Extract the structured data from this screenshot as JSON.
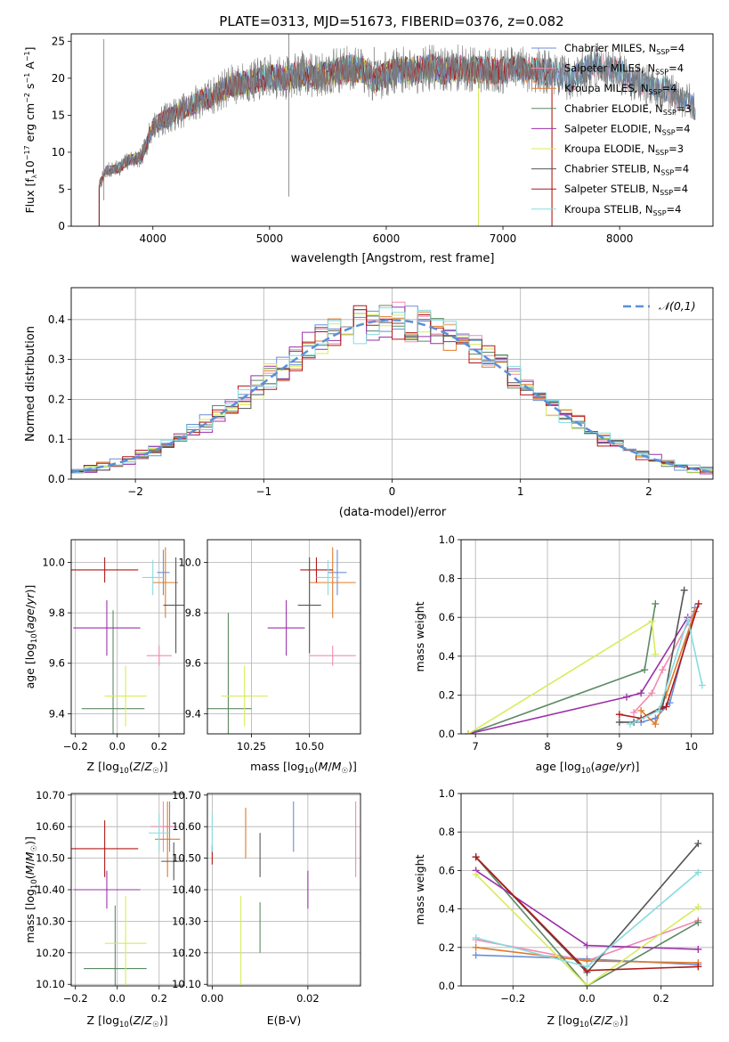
{
  "title": "PLATE=0313, MJD=51673, FIBERID=0376, z=0.082",
  "colors": {
    "Chabrier MILES": "#6a8fd6",
    "Salpeter MILES": "#f18bb0",
    "Kroupa MILES": "#e07b2a",
    "Chabrier ELODIE": "#5c8a64",
    "Salpeter ELODIE": "#9a30a8",
    "Kroupa ELODIE": "#d8ec5a",
    "Chabrier STELIB": "#555555",
    "Salpeter STELIB": "#b01818",
    "Kroupa STELIB": "#86dce0",
    "gauss": "#5b8fd8",
    "grid": "#b0b0b0"
  },
  "chart_data": [
    {
      "id": "spectrum",
      "type": "line",
      "xlabel": "wavelength [Angstrom, rest frame]",
      "ylabel": "Flux [f_λ10^{-17} erg cm^{-2} s^{-1} A^{-1}]",
      "xlim": [
        3300,
        8800
      ],
      "ylim": [
        0,
        26
      ],
      "xticks": [
        4000,
        5000,
        6000,
        7000,
        8000
      ],
      "yticks": [
        0,
        5,
        10,
        15,
        20,
        25
      ],
      "legend_position": "upper-right",
      "grid": false,
      "series": [
        {
          "name": "Chabrier MILES, N_SSP=4",
          "x": [
            3540,
            8650
          ]
        },
        {
          "name": "Salpeter MILES, N_SSP=4",
          "x": [
            3540,
            8650
          ]
        },
        {
          "name": "Kroupa MILES, N_SSP=4",
          "x": [
            3540,
            7420
          ]
        },
        {
          "name": "Chabrier ELODIE, N_SSP=3",
          "x": [
            3540,
            6790
          ]
        },
        {
          "name": "Salpeter ELODIE, N_SSP=4",
          "x": [
            3540,
            6790
          ]
        },
        {
          "name": "Kroupa ELODIE, N_SSP=3",
          "x": [
            3540,
            6790
          ]
        },
        {
          "name": "Chabrier STELIB, N_SSP=4",
          "x": [
            3540,
            8650
          ]
        },
        {
          "name": "Salpeter STELIB, N_SSP=4",
          "x": [
            3540,
            7420
          ]
        },
        {
          "name": "Kroupa STELIB, N_SSP=4",
          "x": [
            3540,
            8650
          ]
        }
      ],
      "observed_flux": {
        "x": [
          3540,
          3600,
          3700,
          3800,
          3900,
          4000,
          4100,
          4200,
          4300,
          4400,
          4500,
          4600,
          4700,
          4800,
          4900,
          5000,
          5100,
          5200,
          5300,
          5400,
          5500,
          5600,
          5700,
          5800,
          5900,
          6000,
          6100,
          6200,
          6300,
          6400,
          6500,
          6600,
          6700,
          6800,
          6900,
          7000,
          7100,
          7200,
          7300,
          7400,
          7500,
          7600,
          7700,
          7800,
          7900,
          8000,
          8100,
          8200,
          8300,
          8400,
          8500,
          8600,
          8650
        ],
        "y": [
          5.5,
          7.5,
          7.8,
          9.0,
          9.2,
          13.5,
          14.5,
          15.2,
          16.0,
          17.0,
          17.5,
          18.5,
          19.2,
          19.4,
          19.8,
          20.2,
          20.0,
          20.3,
          20.8,
          20.2,
          20.8,
          21.0,
          21.4,
          21.2,
          19.6,
          20.6,
          21.2,
          21.0,
          21.2,
          21.4,
          21.0,
          21.4,
          21.2,
          21.2,
          21.0,
          21.0,
          21.3,
          21.2,
          21.0,
          20.8,
          20.3,
          19.8,
          21.2,
          21.7,
          21.3,
          20.9,
          19.8,
          19.3,
          18.4,
          18.5,
          17.3,
          16.8,
          15.8
        ]
      },
      "legend_labels": [
        "Chabrier MILES, N",
        "Salpeter MILES, N",
        "Kroupa MILES, N",
        "Chabrier ELODIE, N",
        "Salpeter ELODIE, N",
        "Kroupa ELODIE, N",
        "Chabrier STELIB, N",
        "Salpeter STELIB, N",
        "Kroupa STELIB, N"
      ],
      "legend_nvals": [
        "=4",
        "=4",
        "=4",
        "=3",
        "=4",
        "=3",
        "=4",
        "=4",
        "=4"
      ],
      "legend_sub": "SSP"
    },
    {
      "id": "residuals",
      "type": "line",
      "xlabel": "(data-model)/error",
      "ylabel": "Normed distribution",
      "xlim": [
        -2.5,
        2.5
      ],
      "ylim": [
        0,
        0.48
      ],
      "xticks": [
        -2,
        -1,
        0,
        1,
        2
      ],
      "yticks": [
        0.0,
        0.1,
        0.2,
        0.3,
        0.4
      ],
      "grid": true,
      "legend_position": "upper-right",
      "gaussian": {
        "name": "𝒩(0,1)",
        "mean": 0,
        "sigma": 1
      },
      "bin_width": 0.1
    },
    {
      "id": "z-age",
      "type": "scatter",
      "xlabel": "Z [log10(Z/Z☉)]",
      "ylabel": "age  [log10(age/yr)]",
      "xlim": [
        -0.22,
        0.32
      ],
      "ylim": [
        9.32,
        10.09
      ],
      "xticks": [
        -0.2,
        0.0,
        0.2
      ],
      "yticks": [
        9.4,
        9.6,
        9.8,
        10.0
      ],
      "grid": true,
      "points": [
        {
          "model": "Chabrier MILES",
          "x": 0.22,
          "y": 9.96,
          "xerr": 0.03,
          "yerr": 0.09
        },
        {
          "model": "Salpeter MILES",
          "x": 0.2,
          "y": 9.63,
          "xerr": 0.06,
          "yerr": 0.04
        },
        {
          "model": "Kroupa MILES",
          "x": 0.23,
          "y": 9.92,
          "xerr": 0.06,
          "yerr": 0.14
        },
        {
          "model": "Chabrier ELODIE",
          "x": -0.02,
          "y": 9.42,
          "xerr": 0.15,
          "yerr": 0.39
        },
        {
          "model": "Salpeter ELODIE",
          "x": -0.05,
          "y": 9.74,
          "xerr": 0.16,
          "yerr": 0.11
        },
        {
          "model": "Kroupa ELODIE",
          "x": 0.04,
          "y": 9.47,
          "xerr": 0.1,
          "yerr": 0.12
        },
        {
          "model": "Chabrier STELIB",
          "x": 0.28,
          "y": 9.83,
          "xerr": 0.06,
          "yerr": 0.19
        },
        {
          "model": "Salpeter STELIB",
          "x": -0.06,
          "y": 9.97,
          "xerr": 0.16,
          "yerr": 0.05
        },
        {
          "model": "Kroupa STELIB",
          "x": 0.17,
          "y": 9.94,
          "xerr": 0.05,
          "yerr": 0.07
        }
      ]
    },
    {
      "id": "mass-age",
      "type": "scatter",
      "xlabel": "mass [log10(M/M☉)]",
      "ylabel": "",
      "xlim": [
        10.06,
        10.72
      ],
      "ylim": [
        9.32,
        10.09
      ],
      "xticks": [
        10.25,
        10.5
      ],
      "yticks": [
        9.4,
        9.6,
        9.8,
        10.0
      ],
      "grid": true,
      "points": [
        {
          "model": "Chabrier MILES",
          "x": 10.62,
          "y": 9.96,
          "xerr": 0.04,
          "yerr": 0.09
        },
        {
          "model": "Salpeter MILES",
          "x": 10.6,
          "y": 9.63,
          "xerr": 0.1,
          "yerr": 0.04
        },
        {
          "model": "Kroupa MILES",
          "x": 10.6,
          "y": 9.92,
          "xerr": 0.1,
          "yerr": 0.14
        },
        {
          "model": "Chabrier ELODIE",
          "x": 10.15,
          "y": 9.42,
          "xerr": 0.1,
          "yerr": 0.38
        },
        {
          "model": "Salpeter ELODIE",
          "x": 10.4,
          "y": 9.74,
          "xerr": 0.08,
          "yerr": 0.11
        },
        {
          "model": "Kroupa ELODIE",
          "x": 10.22,
          "y": 9.47,
          "xerr": 0.1,
          "yerr": 0.12
        },
        {
          "model": "Chabrier STELIB",
          "x": 10.5,
          "y": 9.83,
          "xerr": 0.05,
          "yerr": 0.19
        },
        {
          "model": "Salpeter STELIB",
          "x": 10.53,
          "y": 9.97,
          "xerr": 0.07,
          "yerr": 0.05
        },
        {
          "model": "Kroupa STELIB",
          "x": 10.58,
          "y": 9.94,
          "xerr": 0.05,
          "yerr": 0.07
        }
      ]
    },
    {
      "id": "weight-age",
      "type": "line",
      "xlabel": "age  [log10(age/yr)]",
      "ylabel": "mass weight",
      "xlim": [
        6.8,
        10.3
      ],
      "ylim": [
        0,
        1
      ],
      "xticks": [
        7,
        8,
        9,
        10
      ],
      "yticks": [
        0.0,
        0.2,
        0.4,
        0.6,
        0.8,
        1.0
      ],
      "grid": true,
      "series": [
        {
          "model": "Chabrier MILES",
          "x": [
            9.3,
            9.5,
            9.7,
            10.05
          ],
          "y": [
            0.06,
            0.08,
            0.16,
            0.65
          ]
        },
        {
          "model": "Salpeter MILES",
          "x": [
            9.2,
            9.45,
            9.6,
            10.0
          ],
          "y": [
            0.11,
            0.21,
            0.33,
            0.6
          ]
        },
        {
          "model": "Kroupa MILES",
          "x": [
            9.3,
            9.5,
            9.65,
            10.05
          ],
          "y": [
            0.12,
            0.05,
            0.2,
            0.63
          ]
        },
        {
          "model": "Chabrier ELODIE",
          "x": [
            6.9,
            9.35,
            9.5
          ],
          "y": [
            0.0,
            0.33,
            0.67
          ]
        },
        {
          "model": "Salpeter ELODIE",
          "x": [
            6.9,
            9.1,
            9.3,
            9.95
          ],
          "y": [
            0.0,
            0.19,
            0.21,
            0.6
          ]
        },
        {
          "model": "Kroupa ELODIE",
          "x": [
            6.9,
            9.45,
            9.5
          ],
          "y": [
            0.0,
            0.58,
            0.41
          ]
        },
        {
          "model": "Chabrier STELIB",
          "x": [
            9.0,
            9.2,
            9.6,
            9.9
          ],
          "y": [
            0.06,
            0.06,
            0.14,
            0.74
          ]
        },
        {
          "model": "Salpeter STELIB",
          "x": [
            9.0,
            9.3,
            9.65,
            10.1
          ],
          "y": [
            0.1,
            0.08,
            0.14,
            0.67
          ]
        },
        {
          "model": "Kroupa STELIB",
          "x": [
            9.15,
            9.55,
            9.95,
            10.15
          ],
          "y": [
            0.05,
            0.12,
            0.59,
            0.25
          ]
        }
      ]
    },
    {
      "id": "z-mass",
      "type": "scatter",
      "xlabel": "Z [log10(Z/Z☉)]",
      "ylabel": "mass [log10(M/M☉)]",
      "xlim": [
        -0.22,
        0.32
      ],
      "ylim": [
        10.095,
        10.705
      ],
      "xticks": [
        -0.2,
        0.0,
        0.2
      ],
      "yticks": [
        10.1,
        10.2,
        10.3,
        10.4,
        10.5,
        10.6,
        10.7
      ],
      "grid": true,
      "points": [
        {
          "model": "Chabrier MILES",
          "x": 0.25,
          "y": 10.6,
          "xerr": 0.03,
          "yerr": 0.08
        },
        {
          "model": "Salpeter MILES",
          "x": 0.22,
          "y": 10.6,
          "xerr": 0.06,
          "yerr": 0.08
        },
        {
          "model": "Kroupa MILES",
          "x": 0.24,
          "y": 10.56,
          "xerr": 0.06,
          "yerr": 0.12
        },
        {
          "model": "Chabrier ELODIE",
          "x": -0.01,
          "y": 10.15,
          "xerr": 0.15,
          "yerr": 0.2
        },
        {
          "model": "Salpeter ELODIE",
          "x": -0.05,
          "y": 10.4,
          "xerr": 0.16,
          "yerr": 0.06
        },
        {
          "model": "Kroupa ELODIE",
          "x": 0.04,
          "y": 10.23,
          "xerr": 0.1,
          "yerr": 0.15
        },
        {
          "model": "Chabrier STELIB",
          "x": 0.27,
          "y": 10.49,
          "xerr": 0.06,
          "yerr": 0.06
        },
        {
          "model": "Salpeter STELIB",
          "x": -0.06,
          "y": 10.53,
          "xerr": 0.16,
          "yerr": 0.09
        },
        {
          "model": "Kroupa STELIB",
          "x": 0.2,
          "y": 10.58,
          "xerr": 0.05,
          "yerr": 0.06
        }
      ]
    },
    {
      "id": "ebv-mass",
      "type": "scatter",
      "xlabel": "E(B-V)",
      "ylabel": "",
      "xlim": [
        -0.001,
        0.031
      ],
      "ylim": [
        10.095,
        10.705
      ],
      "xticks": [
        0.0,
        0.02
      ],
      "yticks": [
        10.1,
        10.2,
        10.3,
        10.4,
        10.5,
        10.6,
        10.7
      ],
      "grid": true,
      "points": [
        {
          "model": "Chabrier MILES",
          "x": 0.017,
          "y": 10.6,
          "xerr": 0,
          "yerr": 0.08
        },
        {
          "model": "Salpeter MILES",
          "x": 0.03,
          "y": 10.56,
          "xerr": 0,
          "yerr": 0.12
        },
        {
          "model": "Kroupa MILES",
          "x": 0.007,
          "y": 10.58,
          "xerr": 0,
          "yerr": 0.08
        },
        {
          "model": "Chabrier ELODIE",
          "x": 0.01,
          "y": 10.28,
          "xerr": 0,
          "yerr": 0.08
        },
        {
          "model": "Salpeter ELODIE",
          "x": 0.02,
          "y": 10.4,
          "xerr": 0,
          "yerr": 0.06
        },
        {
          "model": "Kroupa ELODIE",
          "x": 0.006,
          "y": 10.23,
          "xerr": 0,
          "yerr": 0.15
        },
        {
          "model": "Chabrier STELIB",
          "x": 0.01,
          "y": 10.51,
          "xerr": 0,
          "yerr": 0.07
        },
        {
          "model": "Salpeter STELIB",
          "x": 0.0,
          "y": 10.51,
          "xerr": 0,
          "yerr": 0.03
        },
        {
          "model": "Kroupa STELIB",
          "x": 0.0,
          "y": 10.58,
          "xerr": 0,
          "yerr": 0.06
        }
      ]
    },
    {
      "id": "weight-z",
      "type": "line",
      "xlabel": "Z [log10(Z/Z☉)]",
      "ylabel": "mass weight",
      "xlim": [
        -0.34,
        0.34
      ],
      "ylim": [
        0,
        1
      ],
      "xticks": [
        -0.2,
        0.0,
        0.2
      ],
      "yticks": [
        0.0,
        0.2,
        0.4,
        0.6,
        0.8,
        1.0
      ],
      "grid": true,
      "series": [
        {
          "model": "Chabrier MILES",
          "x": [
            -0.3,
            0.0,
            0.3
          ],
          "y": [
            0.16,
            0.14,
            0.11
          ]
        },
        {
          "model": "Salpeter MILES",
          "x": [
            -0.3,
            0.0,
            0.3
          ],
          "y": [
            0.24,
            0.13,
            0.34
          ]
        },
        {
          "model": "Kroupa MILES",
          "x": [
            -0.3,
            0.0,
            0.3
          ],
          "y": [
            0.2,
            0.13,
            0.12
          ]
        },
        {
          "model": "Chabrier ELODIE",
          "x": [
            -0.3,
            0.0,
            0.3
          ],
          "y": [
            0.67,
            0.0,
            0.33
          ]
        },
        {
          "model": "Salpeter ELODIE",
          "x": [
            -0.3,
            0.0,
            0.3
          ],
          "y": [
            0.6,
            0.21,
            0.19
          ]
        },
        {
          "model": "Kroupa ELODIE",
          "x": [
            -0.3,
            0.0,
            0.3
          ],
          "y": [
            0.58,
            0.0,
            0.41
          ]
        },
        {
          "model": "Chabrier STELIB",
          "x": [
            -0.3,
            0.0,
            0.3
          ],
          "y": [
            0.67,
            0.07,
            0.74
          ]
        },
        {
          "model": "Salpeter STELIB",
          "x": [
            -0.3,
            0.0,
            0.3
          ],
          "y": [
            0.67,
            0.08,
            0.1
          ]
        },
        {
          "model": "Kroupa STELIB",
          "x": [
            -0.3,
            0.0,
            0.3
          ],
          "y": [
            0.25,
            0.1,
            0.59
          ]
        }
      ]
    }
  ]
}
